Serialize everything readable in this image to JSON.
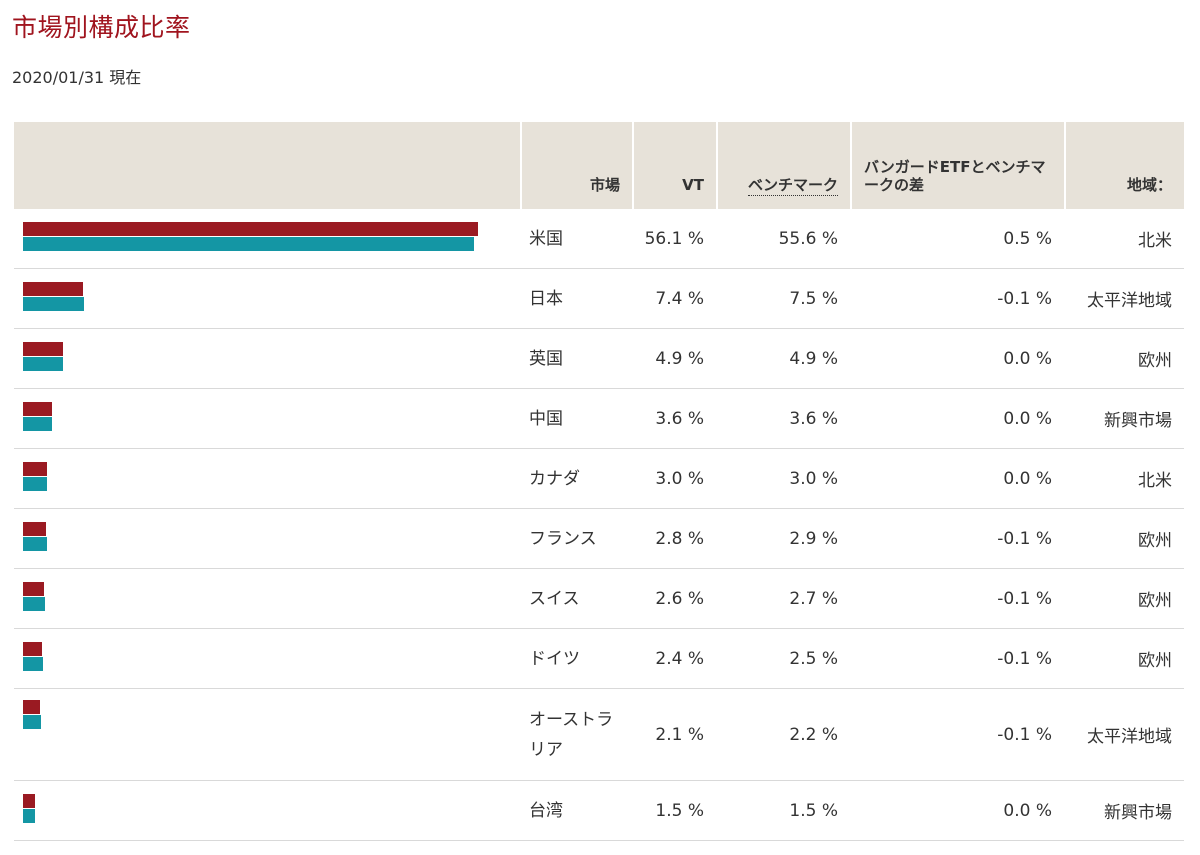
{
  "title": "市場別構成比率",
  "as_of": "2020/01/31 現在",
  "colors": {
    "title": "#a0141e",
    "vt_bar": "#9a1a22",
    "benchmark_bar": "#1496a4",
    "header_bg": "#e7e2d9"
  },
  "headers": {
    "market": "市場",
    "vt": "VT",
    "benchmark": "ベンチマーク",
    "diff": "バンガードETFとベンチマークの差",
    "region": "地域："
  },
  "rows": [
    {
      "market": "米国",
      "vt": "56.1 %",
      "benchmark": "55.6 %",
      "diff": "0.5 %",
      "region": "北米",
      "vt_value": 56.1,
      "bm_value": 55.6
    },
    {
      "market": "日本",
      "vt": "7.4 %",
      "benchmark": "7.5 %",
      "diff": "-0.1 %",
      "region": "太平洋地域",
      "vt_value": 7.4,
      "bm_value": 7.5
    },
    {
      "market": "英国",
      "vt": "4.9 %",
      "benchmark": "4.9 %",
      "diff": "0.0 %",
      "region": "欧州",
      "vt_value": 4.9,
      "bm_value": 4.9
    },
    {
      "market": "中国",
      "vt": "3.6 %",
      "benchmark": "3.6 %",
      "diff": "0.0 %",
      "region": "新興市場",
      "vt_value": 3.6,
      "bm_value": 3.6
    },
    {
      "market": "カナダ",
      "vt": "3.0 %",
      "benchmark": "3.0 %",
      "diff": "0.0 %",
      "region": "北米",
      "vt_value": 3.0,
      "bm_value": 3.0
    },
    {
      "market": "フランス",
      "vt": "2.8 %",
      "benchmark": "2.9 %",
      "diff": "-0.1 %",
      "region": "欧州",
      "vt_value": 2.8,
      "bm_value": 2.9
    },
    {
      "market": "スイス",
      "vt": "2.6 %",
      "benchmark": "2.7 %",
      "diff": "-0.1 %",
      "region": "欧州",
      "vt_value": 2.6,
      "bm_value": 2.7
    },
    {
      "market": "ドイツ",
      "vt": "2.4 %",
      "benchmark": "2.5 %",
      "diff": "-0.1 %",
      "region": "欧州",
      "vt_value": 2.4,
      "bm_value": 2.5
    },
    {
      "market": "オーストラリア",
      "vt": "2.1 %",
      "benchmark": "2.2 %",
      "diff": "-0.1 %",
      "region": "太平洋地域",
      "vt_value": 2.1,
      "bm_value": 2.2
    },
    {
      "market": "台湾",
      "vt": "1.5 %",
      "benchmark": "1.5 %",
      "diff": "0.0 %",
      "region": "新興市場",
      "vt_value": 1.5,
      "bm_value": 1.5
    }
  ]
}
